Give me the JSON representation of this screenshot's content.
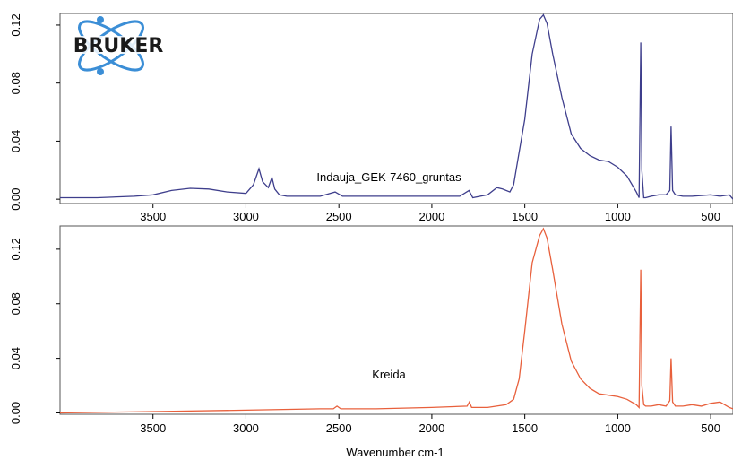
{
  "brand": {
    "logo_text": "BRUKER",
    "logo_color": "#3b8ed6"
  },
  "chart_data": [
    {
      "type": "line",
      "title": "",
      "xlabel": "",
      "ylabel": "",
      "xlim": [
        4000,
        380
      ],
      "ylim": [
        -0.003,
        0.128
      ],
      "x_ticks": [
        "3500",
        "3000",
        "2500",
        "2000",
        "1500",
        "1000",
        "500"
      ],
      "x_tick_values": [
        3500,
        3000,
        2500,
        2000,
        1500,
        1000,
        500
      ],
      "y_ticks": [
        "0.00",
        "0.04",
        "0.08",
        "0.12"
      ],
      "y_tick_values": [
        0.0,
        0.04,
        0.08,
        0.12
      ],
      "grid": false,
      "series": [
        {
          "name": "Indauja_GEK-7460_gruntas",
          "color": "#3e3e8c",
          "x": [
            4000,
            3800,
            3600,
            3500,
            3400,
            3300,
            3200,
            3100,
            3000,
            2960,
            2930,
            2910,
            2880,
            2860,
            2845,
            2820,
            2780,
            2600,
            2520,
            2480,
            2300,
            2000,
            1850,
            1800,
            1780,
            1700,
            1650,
            1620,
            1580,
            1560,
            1540,
            1500,
            1460,
            1420,
            1400,
            1380,
            1350,
            1300,
            1250,
            1200,
            1150,
            1100,
            1050,
            1000,
            950,
            900,
            885,
            876,
            870,
            860,
            850,
            820,
            780,
            740,
            720,
            713,
            705,
            690,
            650,
            600,
            500,
            450,
            400,
            380
          ],
          "y": [
            0.001,
            0.001,
            0.002,
            0.003,
            0.006,
            0.0075,
            0.007,
            0.005,
            0.004,
            0.01,
            0.021,
            0.012,
            0.008,
            0.015,
            0.007,
            0.003,
            0.002,
            0.002,
            0.005,
            0.002,
            0.002,
            0.002,
            0.002,
            0.006,
            0.001,
            0.003,
            0.008,
            0.007,
            0.005,
            0.01,
            0.025,
            0.055,
            0.1,
            0.124,
            0.127,
            0.121,
            0.1,
            0.07,
            0.045,
            0.035,
            0.03,
            0.027,
            0.026,
            0.022,
            0.016,
            0.005,
            0.001,
            0.108,
            0.02,
            0.001,
            0.001,
            0.002,
            0.003,
            0.003,
            0.006,
            0.05,
            0.006,
            0.003,
            0.002,
            0.002,
            0.003,
            0.002,
            0.003,
            0.0
          ]
        }
      ]
    },
    {
      "type": "line",
      "title": "",
      "xlabel": "Wavenumber cm-1",
      "ylabel": "",
      "xlim": [
        4000,
        380
      ],
      "ylim": [
        -0.001,
        0.137
      ],
      "x_ticks": [
        "3500",
        "3000",
        "2500",
        "2000",
        "1500",
        "1000",
        "500"
      ],
      "x_tick_values": [
        3500,
        3000,
        2500,
        2000,
        1500,
        1000,
        500
      ],
      "y_ticks": [
        "0.00",
        "0.04",
        "0.08",
        "0.12"
      ],
      "y_tick_values": [
        0.0,
        0.04,
        0.08,
        0.12
      ],
      "grid": false,
      "series": [
        {
          "name": "Kreida",
          "color": "#e8603c",
          "x": [
            4000,
            3500,
            3000,
            2600,
            2530,
            2510,
            2490,
            2300,
            2000,
            1810,
            1798,
            1786,
            1700,
            1600,
            1560,
            1530,
            1500,
            1460,
            1420,
            1400,
            1380,
            1350,
            1300,
            1250,
            1200,
            1150,
            1100,
            1050,
            1000,
            950,
            900,
            885,
            876,
            870,
            860,
            850,
            820,
            780,
            740,
            720,
            713,
            705,
            690,
            650,
            600,
            550,
            500,
            450,
            400,
            380
          ],
          "y": [
            0.0,
            0.001,
            0.002,
            0.003,
            0.003,
            0.005,
            0.003,
            0.003,
            0.004,
            0.005,
            0.008,
            0.004,
            0.004,
            0.006,
            0.01,
            0.025,
            0.06,
            0.11,
            0.13,
            0.135,
            0.128,
            0.105,
            0.065,
            0.038,
            0.025,
            0.018,
            0.014,
            0.013,
            0.012,
            0.01,
            0.006,
            0.004,
            0.105,
            0.02,
            0.006,
            0.005,
            0.005,
            0.006,
            0.005,
            0.009,
            0.04,
            0.008,
            0.005,
            0.005,
            0.006,
            0.005,
            0.007,
            0.008,
            0.004,
            0.003
          ]
        }
      ]
    }
  ]
}
